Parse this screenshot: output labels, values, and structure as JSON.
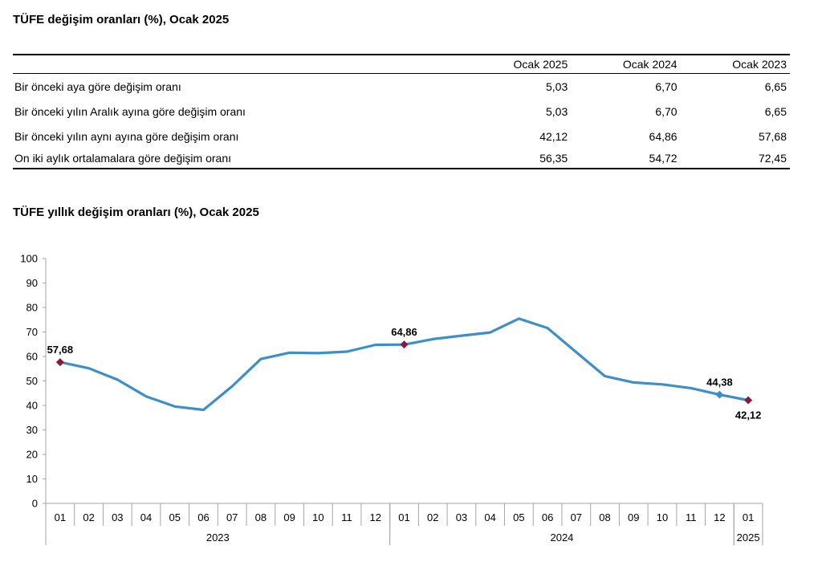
{
  "table_section": {
    "title": "TÜFE değişim oranları (%), Ocak 2025",
    "columns": [
      "Ocak 2025",
      "Ocak 2024",
      "Ocak 2023"
    ],
    "rows": [
      {
        "label": "Bir önceki aya göre değişim oranı",
        "values": [
          "5,03",
          "6,70",
          "6,65"
        ]
      },
      {
        "label": "Bir önceki yılın Aralık ayına göre değişim oranı",
        "values": [
          "5,03",
          "6,70",
          "6,65"
        ]
      },
      {
        "label": "Bir önceki yılın aynı ayına göre değişim oranı",
        "values": [
          "42,12",
          "64,86",
          "57,68"
        ]
      },
      {
        "label": "On iki aylık ortalamalara göre değişim oranı",
        "values": [
          "56,35",
          "54,72",
          "72,45"
        ]
      }
    ]
  },
  "chart_section": {
    "title": "TÜFE yıllık değişim oranları (%), Ocak 2025"
  },
  "chart_data": {
    "type": "line",
    "title": "TÜFE yıllık değişim oranları (%), Ocak 2025",
    "xlabel": "",
    "ylabel": "",
    "ylim": [
      0,
      100
    ],
    "yticks": [
      0,
      10,
      20,
      30,
      40,
      50,
      60,
      70,
      80,
      90,
      100
    ],
    "grid": false,
    "categories": [
      "01",
      "02",
      "03",
      "04",
      "05",
      "06",
      "07",
      "08",
      "09",
      "10",
      "11",
      "12",
      "01",
      "02",
      "03",
      "04",
      "05",
      "06",
      "07",
      "08",
      "09",
      "10",
      "11",
      "12",
      "01"
    ],
    "year_groups": [
      {
        "label": "2023",
        "start": 0,
        "count": 12
      },
      {
        "label": "2024",
        "start": 12,
        "count": 12
      },
      {
        "label": "2025",
        "start": 24,
        "count": 1
      }
    ],
    "series": [
      {
        "color": "#3e8fc9",
        "values": [
          57.68,
          55.18,
          50.51,
          43.68,
          39.59,
          38.21,
          47.83,
          58.94,
          61.53,
          61.36,
          61.98,
          64.77,
          64.86,
          67.07,
          68.5,
          69.8,
          75.45,
          71.6,
          61.78,
          51.97,
          49.38,
          48.58,
          47.09,
          44.38,
          42.12
        ]
      }
    ],
    "annotations": [
      {
        "index": 0,
        "text": "57,68",
        "marker_color": "#8b1a3a",
        "position": "above"
      },
      {
        "index": 12,
        "text": "64,86",
        "marker_color": "#8b1a3a",
        "position": "above"
      },
      {
        "index": 23,
        "text": "44,38",
        "marker_color": "#3e8fc9",
        "position": "above"
      },
      {
        "index": 24,
        "text": "42,12",
        "marker_color": "#8b1a3a",
        "position": "below"
      }
    ]
  }
}
